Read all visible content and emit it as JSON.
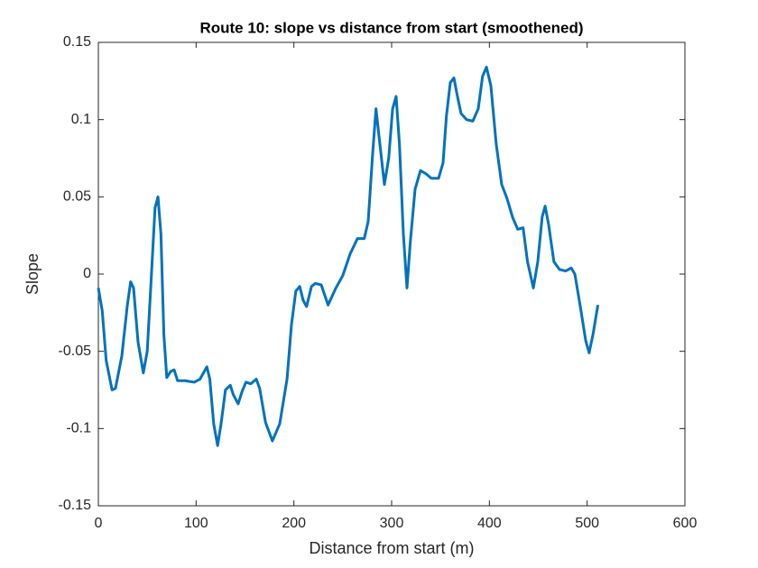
{
  "chart_data": {
    "type": "line",
    "title": "Route 10: slope vs distance from start (smoothened)",
    "x_label": "Distance from start (m)",
    "y_label": "Slope",
    "xlim": [
      0,
      600
    ],
    "xticks": [
      0,
      100,
      200,
      300,
      400,
      500,
      600
    ],
    "ylim": [
      -0.15,
      0.15
    ],
    "yticks": [
      -0.15,
      -0.1,
      -0.05,
      0,
      0.05,
      0.1,
      0.15
    ],
    "grid": false,
    "series": [
      {
        "color": "#0072BD",
        "x": [
          0,
          4,
          8,
          14,
          17.5,
          24,
          29.5,
          33,
          36,
          40.6,
          46,
          50,
          54.5,
          58,
          61,
          64,
          67,
          70,
          74,
          77.5,
          81,
          88.6,
          98,
          104,
          111,
          114,
          118,
          122,
          125.5,
          130,
          135,
          138,
          143,
          147,
          151,
          156,
          161.5,
          165,
          171,
          178,
          185.5,
          193,
          197.5,
          202,
          206,
          209.5,
          213,
          218,
          222,
          228,
          235,
          243,
          250,
          257.5,
          265,
          272,
          276,
          280.6,
          284,
          288,
          292.6,
          297,
          301,
          304.6,
          308,
          312,
          315.7,
          319,
          324,
          329.5,
          335,
          340.6,
          348,
          352.6,
          356,
          360,
          363.7,
          367,
          371,
          376.6,
          383,
          388.6,
          393,
          397,
          401.5,
          407,
          412.6,
          418,
          423.6,
          429,
          434.5,
          439,
          445,
          449.5,
          454,
          457,
          460.6,
          466,
          471.7,
          478,
          483.7,
          487.4,
          493,
          498.5,
          502,
          506,
          511
        ],
        "values": [
          -0.009,
          -0.024,
          -0.056,
          -0.075,
          -0.074,
          -0.053,
          -0.021,
          -0.005,
          -0.009,
          -0.044,
          -0.064,
          -0.05,
          0.002,
          0.043,
          0.05,
          0.026,
          -0.039,
          -0.067,
          -0.063,
          -0.062,
          -0.069,
          -0.069,
          -0.07,
          -0.068,
          -0.06,
          -0.068,
          -0.097,
          -0.111,
          -0.097,
          -0.075,
          -0.072,
          -0.078,
          -0.084,
          -0.076,
          -0.07,
          -0.071,
          -0.068,
          -0.074,
          -0.096,
          -0.108,
          -0.097,
          -0.068,
          -0.033,
          -0.011,
          -0.008,
          -0.017,
          -0.021,
          -0.008,
          -0.006,
          -0.007,
          -0.02,
          -0.009,
          -0.001,
          0.013,
          0.023,
          0.023,
          0.034,
          0.078,
          0.107,
          0.084,
          0.058,
          0.075,
          0.107,
          0.115,
          0.084,
          0.026,
          -0.009,
          0.02,
          0.055,
          0.067,
          0.065,
          0.062,
          0.062,
          0.072,
          0.102,
          0.124,
          0.127,
          0.116,
          0.104,
          0.1,
          0.099,
          0.107,
          0.128,
          0.134,
          0.122,
          0.084,
          0.058,
          0.049,
          0.037,
          0.029,
          0.03,
          0.008,
          -0.009,
          0.008,
          0.037,
          0.044,
          0.032,
          0.008,
          0.003,
          0.002,
          0.004,
          0,
          -0.021,
          -0.043,
          -0.051,
          -0.039,
          -0.02
        ]
      }
    ]
  }
}
